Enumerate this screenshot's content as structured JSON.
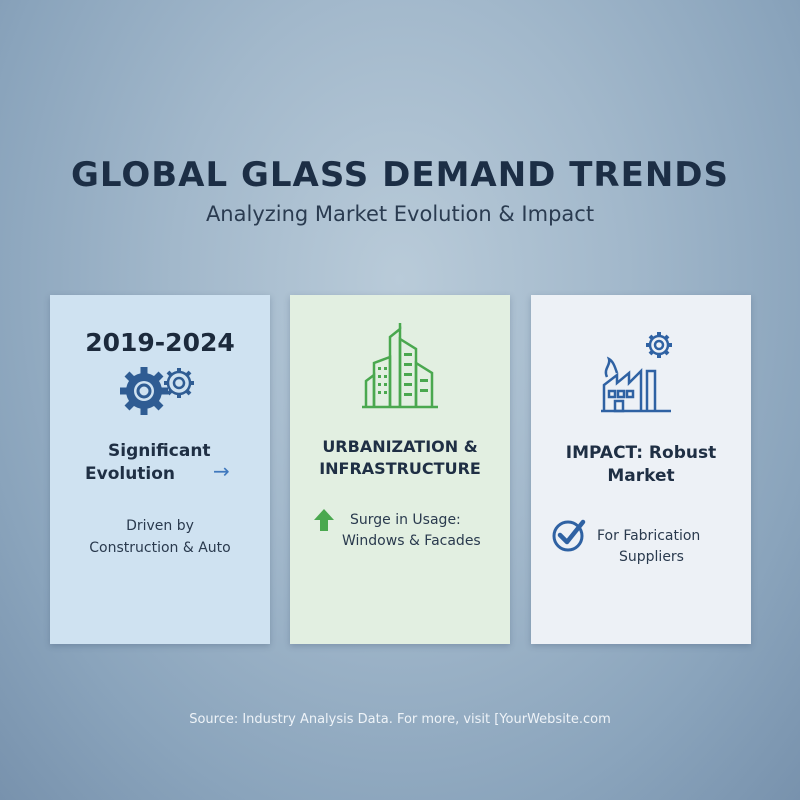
{
  "header": {
    "title": "GLOBAL GLASS DEMAND TRENDS",
    "subtitle": "Analyzing Market Evolution & Impact"
  },
  "cards": [
    {
      "label": "2019-2024",
      "icon": "gears-icon",
      "heading_line1": "Significant",
      "heading_line2": "Evolution",
      "arrow": "→",
      "text_line1": "Driven by",
      "text_line2": "Construction & Auto",
      "background": "#cfe2f1"
    },
    {
      "icon": "buildings-icon",
      "heading_line1": "URBANIZATION &",
      "heading_line2": "INFRASTRUCTURE",
      "bullet_icon": "up-arrow-icon",
      "text_line1": "Surge in Usage:",
      "text_line2": "Windows & Facades",
      "background": "#e2efe1",
      "accent": "#4aa84f"
    },
    {
      "icon": "factory-gear-icon",
      "heading_line1": "IMPACT: Robust",
      "heading_line2": "Market",
      "bullet_icon": "check-circle-icon",
      "text_line1": "For Fabrication",
      "text_line2": "Suppliers",
      "background": "#edf1f6",
      "accent": "#2f62a3"
    }
  ],
  "footer": "Source: Industry Analysis Data. For more, visit [YourWebsite.com"
}
